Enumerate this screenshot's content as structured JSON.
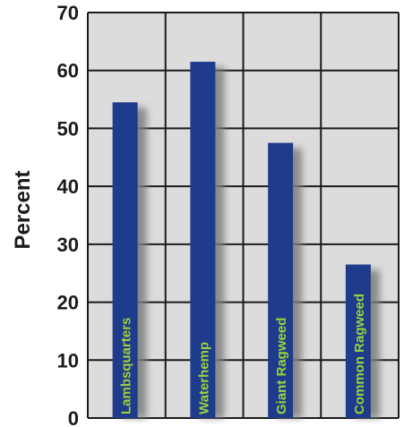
{
  "chart_data": {
    "type": "bar",
    "title": "",
    "xlabel": "",
    "ylabel": "Percent",
    "ylim": [
      0,
      70
    ],
    "yticks": [
      0,
      10,
      20,
      30,
      40,
      50,
      60,
      70
    ],
    "categories": [
      "Lambsquarters",
      "Waterhemp",
      "Giant Ragweed",
      "Common Ragweed"
    ],
    "values": [
      54.5,
      61.5,
      47.5,
      26.5
    ],
    "grid": true,
    "labels_inside_bars": true,
    "colors": {
      "plot_bg": "#dcdcdc",
      "grid": "#1a1a1a",
      "bar": "#1f3b8c",
      "bar_label": "#9bd33a",
      "shadow": "#7d7d7d"
    }
  }
}
